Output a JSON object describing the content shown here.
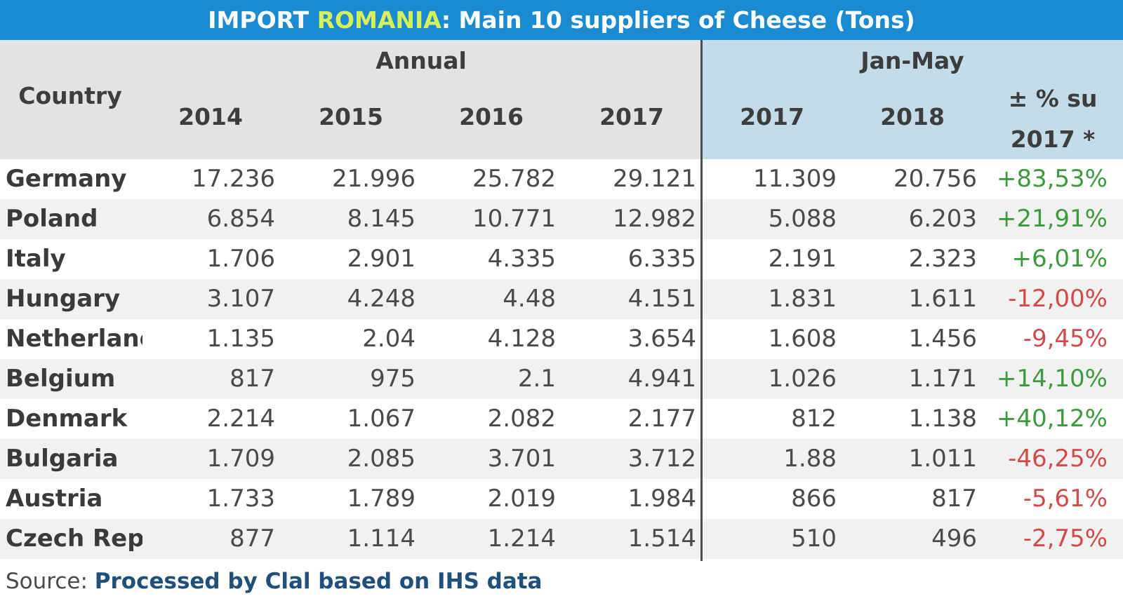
{
  "title": {
    "prefix": "IMPORT",
    "highlight": "ROMANIA",
    "suffix": ": Main 10 suppliers of Cheese (Tons)"
  },
  "colors": {
    "title_bg": "#1a8ad1",
    "title_highlight": "#d6f05a",
    "positive": "#3d9a3d",
    "negative": "#d24b4b",
    "annual_header_bg": "#e3e3e3",
    "janmay_header_bg": "#c4dcea"
  },
  "chart_data": {
    "type": "table",
    "group_headers": {
      "annual": "Annual",
      "jan_may": "Jan-May"
    },
    "country_header": "Country",
    "columns": [
      "2014",
      "2015",
      "2016",
      "2017",
      "2017",
      "2018"
    ],
    "change_header_line1": "± % su",
    "change_header_line2": "2017 *",
    "rows": [
      {
        "country": "Germany",
        "values": [
          "17.236",
          "21.996",
          "25.782",
          "29.121",
          "11.309",
          "20.756"
        ],
        "change": "+83,53%"
      },
      {
        "country": "Poland",
        "values": [
          "6.854",
          "8.145",
          "10.771",
          "12.982",
          "5.088",
          "6.203"
        ],
        "change": "+21,91%"
      },
      {
        "country": "Italy",
        "values": [
          "1.706",
          "2.901",
          "4.335",
          "6.335",
          "2.191",
          "2.323"
        ],
        "change": "+6,01%"
      },
      {
        "country": "Hungary",
        "values": [
          "3.107",
          "4.248",
          "4.48",
          "4.151",
          "1.831",
          "1.611"
        ],
        "change": "-12,00%"
      },
      {
        "country": "Netherlanc",
        "values": [
          "1.135",
          "2.04",
          "4.128",
          "3.654",
          "1.608",
          "1.456"
        ],
        "change": "-9,45%"
      },
      {
        "country": "Belgium",
        "values": [
          "817",
          "975",
          "2.1",
          "4.941",
          "1.026",
          "1.171"
        ],
        "change": "+14,10%"
      },
      {
        "country": "Denmark",
        "values": [
          "2.214",
          "1.067",
          "2.082",
          "2.177",
          "812",
          "1.138"
        ],
        "change": "+40,12%"
      },
      {
        "country": "Bulgaria",
        "values": [
          "1.709",
          "2.085",
          "3.701",
          "3.712",
          "1.88",
          "1.011"
        ],
        "change": "-46,25%"
      },
      {
        "country": "Austria",
        "values": [
          "1.733",
          "1.789",
          "2.019",
          "1.984",
          "866",
          "817"
        ],
        "change": "-5,61%"
      },
      {
        "country": "Czech Repı",
        "values": [
          "877",
          "1.114",
          "1.214",
          "1.514",
          "510",
          "496"
        ],
        "change": "-2,75%"
      }
    ]
  },
  "source": {
    "label": "Source:",
    "text": "Processed by Clal based on IHS data"
  }
}
